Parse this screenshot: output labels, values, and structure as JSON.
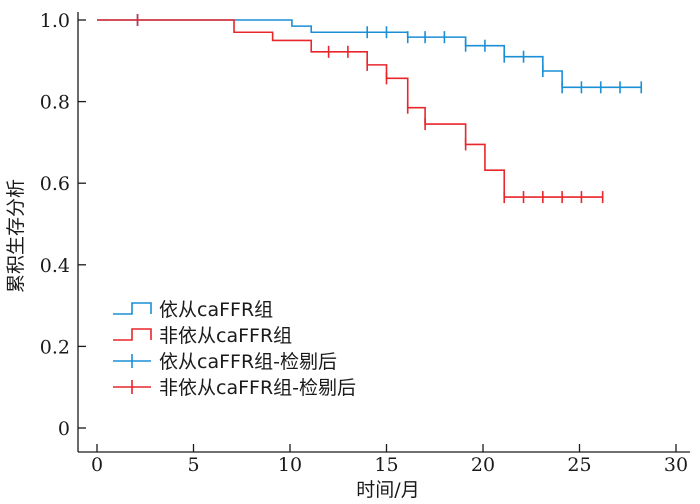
{
  "chart_data": {
    "type": "line",
    "step": true,
    "xlabel": "时间/月",
    "ylabel": "累积生存分析",
    "xlim": [
      0,
      30
    ],
    "ylim": [
      0,
      1
    ],
    "x_ticks": [
      "0",
      "5",
      "10",
      "15",
      "20",
      "25",
      "30"
    ],
    "y_ticks": [
      "0",
      "0.2",
      "0.4",
      "0.6",
      "0.8",
      "1.0"
    ],
    "grid": false,
    "legend_position": "bottom-left",
    "colors": {
      "adherent": "#1a8fd6",
      "nonadherent": "#e8262b"
    },
    "series": [
      {
        "name": "依从caFFR组",
        "color": "#1a8fd6",
        "steps": [
          [
            0,
            1.0
          ],
          [
            10.1,
            0.985
          ],
          [
            11.1,
            0.97
          ],
          [
            16.1,
            0.958
          ],
          [
            19.1,
            0.937
          ],
          [
            21.1,
            0.91
          ],
          [
            23.1,
            0.875
          ],
          [
            24.1,
            0.835
          ],
          [
            28.2,
            0.835
          ]
        ],
        "censored": [
          [
            2.1,
            1.0
          ],
          [
            14.0,
            0.97
          ],
          [
            15.0,
            0.97
          ],
          [
            16.1,
            0.958
          ],
          [
            17.0,
            0.958
          ],
          [
            18.0,
            0.958
          ],
          [
            19.1,
            0.937
          ],
          [
            20.1,
            0.937
          ],
          [
            21.1,
            0.91
          ],
          [
            22.1,
            0.91
          ],
          [
            23.1,
            0.875
          ],
          [
            24.1,
            0.835
          ],
          [
            25.1,
            0.835
          ],
          [
            26.1,
            0.835
          ],
          [
            27.1,
            0.835
          ],
          [
            28.2,
            0.835
          ]
        ]
      },
      {
        "name": "非依从caFFR组",
        "color": "#e8262b",
        "steps": [
          [
            0,
            1.0
          ],
          [
            7.1,
            0.97
          ],
          [
            9.1,
            0.95
          ],
          [
            11.1,
            0.922
          ],
          [
            14.0,
            0.89
          ],
          [
            15.0,
            0.857
          ],
          [
            16.1,
            0.785
          ],
          [
            17.0,
            0.745
          ],
          [
            19.1,
            0.695
          ],
          [
            20.1,
            0.632
          ],
          [
            21.1,
            0.566
          ],
          [
            26.2,
            0.566
          ]
        ],
        "censored": [
          [
            2.1,
            1.0
          ],
          [
            12.0,
            0.922
          ],
          [
            13.0,
            0.922
          ],
          [
            14.0,
            0.89
          ],
          [
            15.0,
            0.857
          ],
          [
            16.1,
            0.785
          ],
          [
            17.0,
            0.745
          ],
          [
            19.1,
            0.695
          ],
          [
            21.1,
            0.566
          ],
          [
            22.1,
            0.566
          ],
          [
            23.1,
            0.566
          ],
          [
            24.1,
            0.566
          ],
          [
            25.1,
            0.566
          ],
          [
            26.2,
            0.566
          ]
        ]
      }
    ],
    "legend": [
      {
        "label": "依从caFFR组",
        "style": "step",
        "color": "#1a8fd6"
      },
      {
        "label": "非依从caFFR组",
        "style": "step",
        "color": "#e8262b"
      },
      {
        "label": "依从caFFR组-检剔后",
        "style": "censor",
        "color": "#1a8fd6"
      },
      {
        "label": "非依从caFFR组-检剔后",
        "style": "censor",
        "color": "#e8262b"
      }
    ]
  }
}
